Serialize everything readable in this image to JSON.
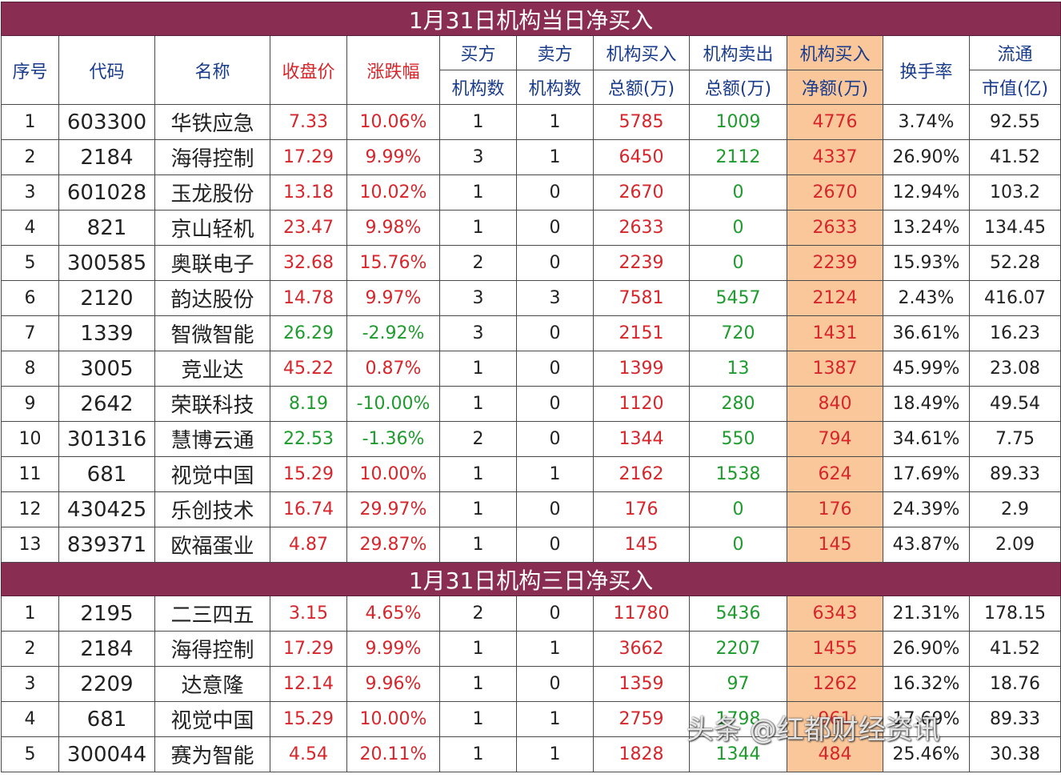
{
  "section1_title": "1月31日机构当日净买入",
  "section2_title": "1月31日机构三日净买入",
  "headers": {
    "seq": "序号",
    "code": "代码",
    "name": "名称",
    "close": "收盘价",
    "change": "涨跌幅",
    "buy_count_1": "买方",
    "buy_count_2": "机构数",
    "sell_count_1": "卖方",
    "sell_count_2": "机构数",
    "buy_total_1": "机构买入",
    "buy_total_2": "总额(万)",
    "sell_total_1": "机构卖出",
    "sell_total_2": "总额(万)",
    "net_1": "机构买入",
    "net_2": "净额(万)",
    "turnover": "换手率",
    "mcap_1": "流通",
    "mcap_2": "市值(亿)"
  },
  "section1_rows": [
    {
      "seq": "1",
      "code": "603300",
      "name": "华铁应急",
      "close": "7.33",
      "change": "10.06%",
      "buyers": "1",
      "sellers": "1",
      "buy": "5785",
      "sell": "1009",
      "net": "4776",
      "turnover": "3.74%",
      "mcap": "92.55"
    },
    {
      "seq": "2",
      "code": "2184",
      "name": "海得控制",
      "close": "17.29",
      "change": "9.99%",
      "buyers": "3",
      "sellers": "1",
      "buy": "6450",
      "sell": "2112",
      "net": "4337",
      "turnover": "26.90%",
      "mcap": "41.52"
    },
    {
      "seq": "3",
      "code": "601028",
      "name": "玉龙股份",
      "close": "13.18",
      "change": "10.02%",
      "buyers": "1",
      "sellers": "0",
      "buy": "2670",
      "sell": "0",
      "net": "2670",
      "turnover": "12.94%",
      "mcap": "103.2"
    },
    {
      "seq": "4",
      "code": "821",
      "name": "京山轻机",
      "close": "23.47",
      "change": "9.98%",
      "buyers": "1",
      "sellers": "0",
      "buy": "2633",
      "sell": "0",
      "net": "2633",
      "turnover": "13.24%",
      "mcap": "134.45"
    },
    {
      "seq": "5",
      "code": "300585",
      "name": "奥联电子",
      "close": "32.68",
      "change": "15.76%",
      "buyers": "2",
      "sellers": "0",
      "buy": "2239",
      "sell": "0",
      "net": "2239",
      "turnover": "15.93%",
      "mcap": "52.28"
    },
    {
      "seq": "6",
      "code": "2120",
      "name": "韵达股份",
      "close": "14.78",
      "change": "9.97%",
      "buyers": "3",
      "sellers": "3",
      "buy": "7581",
      "sell": "5457",
      "net": "2124",
      "turnover": "2.43%",
      "mcap": "416.07"
    },
    {
      "seq": "7",
      "code": "1339",
      "name": "智微智能",
      "close": "26.29",
      "change": "-2.92%",
      "buyers": "3",
      "sellers": "0",
      "buy": "2151",
      "sell": "720",
      "net": "1431",
      "turnover": "36.61%",
      "mcap": "16.23"
    },
    {
      "seq": "8",
      "code": "3005",
      "name": "竞业达",
      "close": "45.22",
      "change": "0.87%",
      "buyers": "1",
      "sellers": "0",
      "buy": "1399",
      "sell": "13",
      "net": "1387",
      "turnover": "45.99%",
      "mcap": "23.08"
    },
    {
      "seq": "9",
      "code": "2642",
      "name": "荣联科技",
      "close": "8.19",
      "change": "-10.00%",
      "buyers": "1",
      "sellers": "0",
      "buy": "1120",
      "sell": "280",
      "net": "840",
      "turnover": "18.49%",
      "mcap": "49.54"
    },
    {
      "seq": "10",
      "code": "301316",
      "name": "慧博云通",
      "close": "22.53",
      "change": "-1.36%",
      "buyers": "2",
      "sellers": "0",
      "buy": "1344",
      "sell": "550",
      "net": "794",
      "turnover": "34.61%",
      "mcap": "7.75"
    },
    {
      "seq": "11",
      "code": "681",
      "name": "视觉中国",
      "close": "15.29",
      "change": "10.00%",
      "buyers": "1",
      "sellers": "1",
      "buy": "2162",
      "sell": "1538",
      "net": "624",
      "turnover": "17.69%",
      "mcap": "89.33"
    },
    {
      "seq": "12",
      "code": "430425",
      "name": "乐创技术",
      "close": "16.74",
      "change": "29.97%",
      "buyers": "1",
      "sellers": "0",
      "buy": "176",
      "sell": "0",
      "net": "176",
      "turnover": "24.39%",
      "mcap": "2.9"
    },
    {
      "seq": "13",
      "code": "839371",
      "name": "欧福蛋业",
      "close": "4.87",
      "change": "29.87%",
      "buyers": "1",
      "sellers": "0",
      "buy": "145",
      "sell": "0",
      "net": "145",
      "turnover": "43.87%",
      "mcap": "2.09"
    }
  ],
  "section2_rows": [
    {
      "seq": "1",
      "code": "2195",
      "name": "二三四五",
      "close": "3.15",
      "change": "4.65%",
      "buyers": "2",
      "sellers": "0",
      "buy": "11780",
      "sell": "5436",
      "net": "6343",
      "turnover": "21.31%",
      "mcap": "178.15"
    },
    {
      "seq": "2",
      "code": "2184",
      "name": "海得控制",
      "close": "17.29",
      "change": "9.99%",
      "buyers": "1",
      "sellers": "1",
      "buy": "3662",
      "sell": "2207",
      "net": "1455",
      "turnover": "26.90%",
      "mcap": "41.52"
    },
    {
      "seq": "3",
      "code": "2209",
      "name": "达意隆",
      "close": "12.14",
      "change": "9.96%",
      "buyers": "1",
      "sellers": "0",
      "buy": "1359",
      "sell": "97",
      "net": "1262",
      "turnover": "16.32%",
      "mcap": "18.76"
    },
    {
      "seq": "4",
      "code": "681",
      "name": "视觉中国",
      "close": "15.29",
      "change": "10.00%",
      "buyers": "1",
      "sellers": "1",
      "buy": "2759",
      "sell": "1798",
      "net": "961",
      "turnover": "17.69%",
      "mcap": "89.33"
    },
    {
      "seq": "5",
      "code": "300044",
      "name": "赛为智能",
      "close": "4.54",
      "change": "20.11%",
      "buyers": "1",
      "sellers": "1",
      "buy": "1828",
      "sell": "1344",
      "net": "484",
      "turnover": "25.46%",
      "mcap": "30.38"
    }
  ],
  "watermark": "头条 @红都财经资讯",
  "colors": {
    "title_bg": "#8a2d52",
    "net_bg": "#f9c79a",
    "up": "#d7262b",
    "down": "#1e9b2d",
    "header_text": "#1a3c8c"
  }
}
